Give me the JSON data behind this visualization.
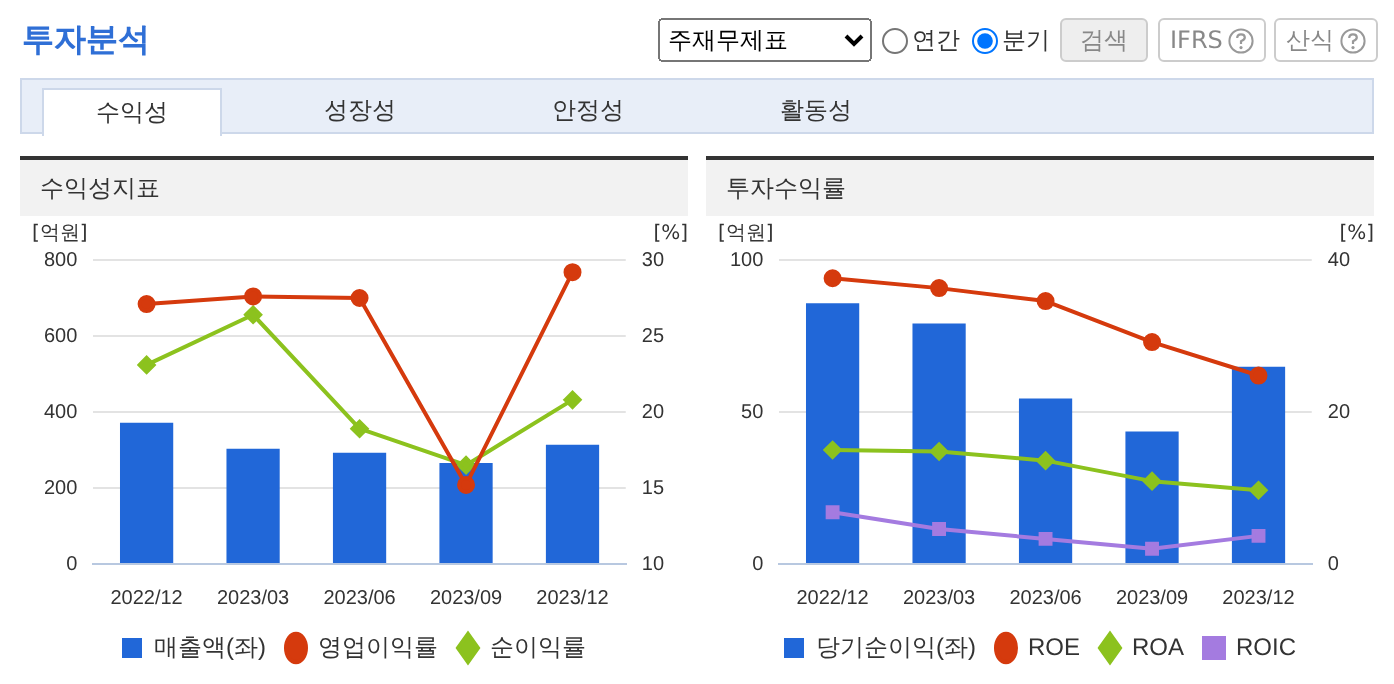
{
  "chart_data": [
    {
      "type": "other",
      "title": "투자분석",
      "annotations": [
        "주재무제표",
        "연간",
        "분기",
        "검색",
        "IFRS",
        "산식",
        "수익성",
        "성장성",
        "안정성",
        "활동성"
      ]
    },
    {
      "type": "bar",
      "title": "수익성지표",
      "ylabel": "[억원]",
      "y2label": "[%]",
      "categories": [
        "2022/12",
        "2023/03",
        "2023/06",
        "2023/09",
        "2023/12"
      ],
      "series": [
        {
          "name": "매출액(좌)",
          "type": "bar",
          "color": "#2167d8",
          "values": [
            372,
            303,
            293,
            266,
            314
          ]
        },
        {
          "name": "영업이익률",
          "type": "line",
          "axis": "y2",
          "marker": "circle",
          "color": "#d53a0d",
          "values": [
            27.1,
            27.6,
            27.5,
            15.2,
            29.2
          ]
        },
        {
          "name": "순이익률",
          "type": "line",
          "axis": "y2",
          "marker": "diamond",
          "color": "#8cc21e",
          "values": [
            23.1,
            26.4,
            18.9,
            16.5,
            20.8
          ]
        }
      ],
      "ylim": [
        0,
        800
      ],
      "yticks": [
        0,
        200,
        400,
        600,
        800
      ],
      "y2lim": [
        10,
        30
      ],
      "y2ticks": [
        10,
        15,
        20,
        25,
        30
      ],
      "grid": "y",
      "legend": "bottom"
    },
    {
      "type": "bar",
      "title": "투자수익률",
      "ylabel": "[억원]",
      "y2label": "[%]",
      "categories": [
        "2022/12",
        "2023/03",
        "2023/06",
        "2023/09",
        "2023/12"
      ],
      "series": [
        {
          "name": "당기순이익(좌)",
          "type": "bar",
          "color": "#2167d8",
          "values": [
            85.8,
            79.1,
            54.4,
            43.6,
            64.9
          ]
        },
        {
          "name": "ROE",
          "type": "line",
          "axis": "y2",
          "marker": "circle",
          "color": "#d53a0d",
          "values": [
            37.6,
            36.3,
            34.6,
            29.2,
            24.8
          ]
        },
        {
          "name": "ROA",
          "type": "line",
          "axis": "y2",
          "marker": "diamond",
          "color": "#8cc21e",
          "values": [
            15.0,
            14.8,
            13.6,
            10.9,
            9.7
          ]
        },
        {
          "name": "ROIC",
          "type": "line",
          "axis": "y2",
          "marker": "square",
          "color": "#a47be0",
          "values": [
            6.8,
            4.6,
            3.3,
            2.0,
            3.7
          ]
        }
      ],
      "ylim": [
        0,
        100
      ],
      "yticks": [
        0,
        50,
        100
      ],
      "y2lim": [
        0,
        40
      ],
      "y2ticks": [
        0,
        20,
        40
      ],
      "grid": "y",
      "legend": "bottom"
    }
  ]
}
